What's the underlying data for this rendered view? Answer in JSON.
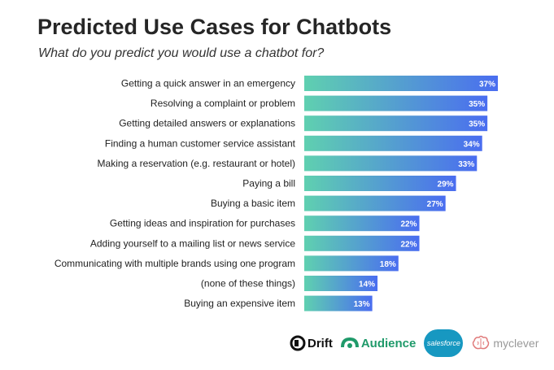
{
  "title": "Predicted Use Cases for Chatbots",
  "subtitle": "What do you predict you would use a chatbot for?",
  "colors": {
    "bar_start": "#5fd0b0",
    "bar_end": "#4a6df0",
    "value_text": "#ffffff"
  },
  "chart_data": {
    "type": "bar",
    "orientation": "horizontal",
    "title": "Predicted Use Cases for Chatbots",
    "subtitle": "What do you predict you would use a chatbot for?",
    "categories": [
      "Getting a quick answer in an emergency",
      "Resolving a complaint or problem",
      "Getting detailed answers or explanations",
      "Finding a human customer service assistant",
      "Making a reservation (e.g. restaurant or hotel)",
      "Paying a bill",
      "Buying a basic item",
      "Getting ideas and inspiration for purchases",
      "Adding yourself to a mailing list or news service",
      "Communicating with multiple brands using one program",
      "(none of these things)",
      "Buying an expensive item"
    ],
    "values": [
      37,
      35,
      35,
      34,
      33,
      29,
      27,
      22,
      22,
      18,
      14,
      13
    ],
    "value_labels": [
      "37%",
      "35%",
      "35%",
      "34%",
      "33%",
      "29%",
      "27%",
      "22%",
      "22%",
      "18%",
      "14%",
      "13%"
    ],
    "unit": "%",
    "xlim": [
      0,
      37
    ],
    "grid": false,
    "legend": "none"
  },
  "logos": [
    {
      "name": "Drift",
      "icon": "drift-icon"
    },
    {
      "name": "Audience",
      "icon": "audience-icon"
    },
    {
      "name": "salesforce",
      "icon": "salesforce-cloud-icon"
    },
    {
      "name": "myclever",
      "icon": "myclever-brain-icon"
    }
  ]
}
